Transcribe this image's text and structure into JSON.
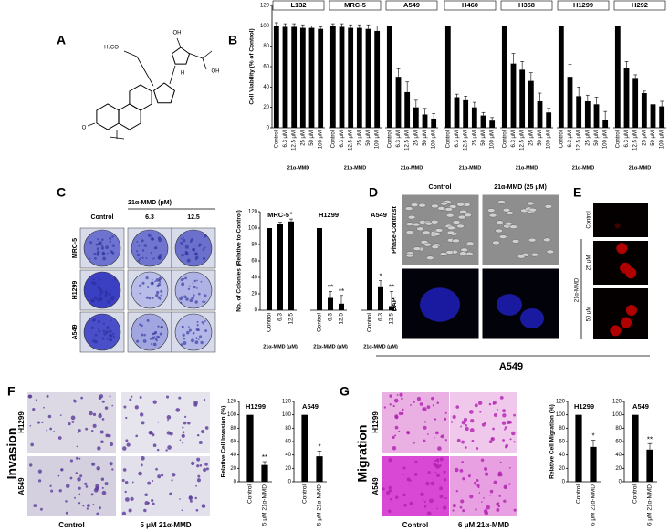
{
  "panel_labels": [
    "A",
    "B",
    "C",
    "D",
    "E",
    "F",
    "G"
  ],
  "structure": {
    "labels": [
      "H₃CO",
      "OH",
      "OH",
      "H",
      "O"
    ]
  },
  "images": {
    "C": {
      "header": "21α-MMD (μM)",
      "columns": [
        "Control",
        "6.3",
        "12.5"
      ],
      "rows": [
        "MRC-5",
        "H1299",
        "A549"
      ]
    },
    "D": {
      "columns": [
        "Control",
        "21α-MMD (25 μM)"
      ],
      "rows": [
        "Phase-Contrast",
        "DAPI"
      ],
      "caption": "A549"
    },
    "E": {
      "rows": [
        "Control",
        "25 μM",
        "50 μM"
      ],
      "group": "21α-MMD"
    },
    "F": {
      "title": "Invasion",
      "rows": [
        "H1299",
        "A549"
      ],
      "columns": [
        "Control",
        "5 μM 21α-MMD"
      ]
    },
    "G": {
      "title": "Migration",
      "rows": [
        "H1299",
        "A549"
      ],
      "columns": [
        "Control",
        "6 μM 21α-MMD"
      ]
    }
  },
  "chart_data": [
    {
      "type": "bar",
      "ylabel": "Cell Viability (% of Control)",
      "xlabel": "21α-MMD",
      "color": "#000000",
      "ylim": [
        0,
        120
      ],
      "yticks": [
        0,
        20,
        40,
        60,
        80,
        100,
        120
      ],
      "categories": [
        "Control",
        "6.3 μM",
        "12.5 μM",
        "25 μM",
        "50 μM",
        "100 μM"
      ],
      "groups": [
        {
          "title": "L132",
          "values": [
            100,
            99,
            99,
            98,
            98,
            97
          ],
          "errors": [
            3,
            3,
            3,
            3,
            2,
            2
          ]
        },
        {
          "title": "MRC-5",
          "values": [
            100,
            99,
            98,
            98,
            97,
            95
          ],
          "errors": [
            2,
            3,
            3,
            3,
            4,
            5
          ]
        },
        {
          "title": "A549",
          "values": [
            100,
            50,
            35,
            20,
            13,
            9
          ],
          "errors": [
            0,
            8,
            10,
            7,
            6,
            5
          ]
        },
        {
          "title": "H460",
          "values": [
            100,
            30,
            27,
            20,
            12,
            7
          ],
          "errors": [
            0,
            3,
            4,
            5,
            3,
            3
          ]
        },
        {
          "title": "H358",
          "values": [
            100,
            63,
            57,
            46,
            26,
            15
          ],
          "errors": [
            0,
            10,
            8,
            8,
            8,
            4
          ]
        },
        {
          "title": "H1299",
          "values": [
            100,
            50,
            31,
            26,
            23,
            8
          ],
          "errors": [
            0,
            12,
            9,
            6,
            7,
            8
          ]
        },
        {
          "title": "H292",
          "values": [
            100,
            59,
            48,
            34,
            23,
            21
          ],
          "errors": [
            0,
            6,
            4,
            2,
            5,
            5
          ]
        }
      ]
    },
    {
      "type": "bar",
      "ylabel": "No. of Colonies (Relative to Control)",
      "xlabel": "21α-MMD (μM)",
      "color": "#000000",
      "ylim": [
        0,
        120
      ],
      "yticks": [
        0,
        20,
        40,
        60,
        80,
        100,
        120
      ],
      "categories": [
        "Control",
        "6.3",
        "12.5"
      ],
      "groups": [
        {
          "title": "MRC-5",
          "values": [
            100,
            105,
            108
          ],
          "errors": [
            0,
            2,
            3
          ],
          "annotations": [
            null,
            null,
            "*"
          ]
        },
        {
          "title": "H1299",
          "values": [
            100,
            15,
            8
          ],
          "errors": [
            0,
            8,
            10
          ],
          "annotations": [
            null,
            "**",
            "**"
          ]
        },
        {
          "title": "A549",
          "values": [
            100,
            28,
            5
          ],
          "errors": [
            0,
            8,
            18
          ],
          "annotations": [
            null,
            "*",
            "**"
          ]
        }
      ]
    },
    {
      "type": "bar",
      "ylabel": "Relative Cell Invasion (%)",
      "color": "#000000",
      "ylim": [
        0,
        120
      ],
      "yticks": [
        0,
        20,
        40,
        60,
        80,
        100,
        120
      ],
      "categories": [
        "Control",
        "5 μM 21α-MMD"
      ],
      "groups": [
        {
          "title": "H1299",
          "values": [
            100,
            25
          ],
          "errors": [
            0,
            5
          ],
          "annotations": [
            null,
            "**"
          ]
        },
        {
          "title": "A549",
          "values": [
            100,
            38
          ],
          "errors": [
            0,
            8
          ],
          "annotations": [
            null,
            "*"
          ]
        }
      ]
    },
    {
      "type": "bar",
      "ylabel": "Relative Cell Migration (%)",
      "color": "#000000",
      "ylim": [
        0,
        120
      ],
      "yticks": [
        0,
        20,
        40,
        60,
        80,
        100,
        120
      ],
      "categories": [
        "Control",
        "6 μM 21α-MMD"
      ],
      "groups": [
        {
          "title": "H1299",
          "values": [
            100,
            52
          ],
          "errors": [
            0,
            10
          ],
          "annotations": [
            null,
            "*"
          ]
        },
        {
          "title": "A549",
          "values": [
            100,
            48
          ],
          "errors": [
            0,
            9
          ],
          "annotations": [
            null,
            "**"
          ]
        }
      ]
    }
  ]
}
